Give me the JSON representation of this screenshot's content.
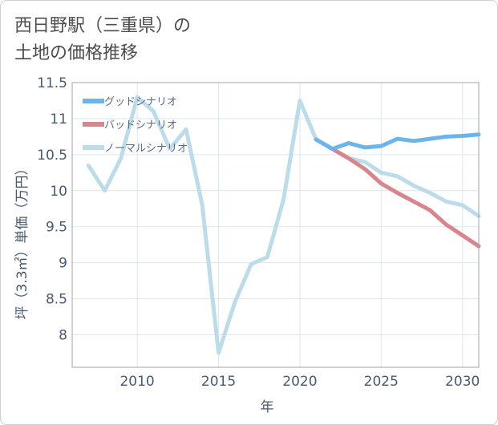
{
  "chart_data": {
    "type": "line",
    "title_lines": [
      "西日野駅（三重県）の",
      "土地の価格推移"
    ],
    "xlabel": "年",
    "ylabel": "坪（3.3㎡）単価（万円）",
    "xlim": [
      2006,
      2031
    ],
    "ylim": [
      7.55,
      11.5
    ],
    "x_ticks": [
      2010,
      2015,
      2020,
      2025,
      2030
    ],
    "y_ticks": [
      8,
      8.5,
      9,
      9.5,
      10,
      10.5,
      11,
      11.5
    ],
    "y_tick_labels": [
      "8",
      "8.5",
      "9",
      "9.5",
      "10",
      "10.5",
      "11",
      "11.5"
    ],
    "grid": true,
    "legend_position": "top-left",
    "series": [
      {
        "name": "グッドシナリオ",
        "color": "#6cb4ec",
        "x": [
          2021,
          2022,
          2023,
          2024,
          2025,
          2026,
          2027,
          2028,
          2029,
          2030,
          2031
        ],
        "y": [
          10.71,
          10.58,
          10.66,
          10.6,
          10.62,
          10.72,
          10.69,
          10.72,
          10.75,
          10.76,
          10.78
        ]
      },
      {
        "name": "バッドシナリオ",
        "color": "#d9858d",
        "x": [
          2021,
          2022,
          2023,
          2024,
          2025,
          2026,
          2027,
          2028,
          2029,
          2030,
          2031
        ],
        "y": [
          10.71,
          10.58,
          10.45,
          10.3,
          10.1,
          9.97,
          9.85,
          9.73,
          9.53,
          9.38,
          9.23
        ]
      },
      {
        "name": "ノーマルシナリオ",
        "color": "#bddbe8",
        "x": [
          2007,
          2008,
          2009,
          2010,
          2011,
          2012,
          2013,
          2014,
          2015,
          2016,
          2017,
          2018,
          2019,
          2020,
          2021,
          2022,
          2023,
          2024,
          2025,
          2026,
          2027,
          2028,
          2029,
          2030,
          2031
        ],
        "y": [
          10.35,
          10.0,
          10.45,
          11.3,
          11.1,
          10.58,
          10.85,
          9.8,
          7.75,
          8.45,
          8.98,
          9.08,
          9.88,
          11.25,
          10.71,
          10.58,
          10.45,
          10.4,
          10.25,
          10.2,
          10.07,
          9.97,
          9.85,
          9.8,
          9.65
        ]
      }
    ]
  }
}
